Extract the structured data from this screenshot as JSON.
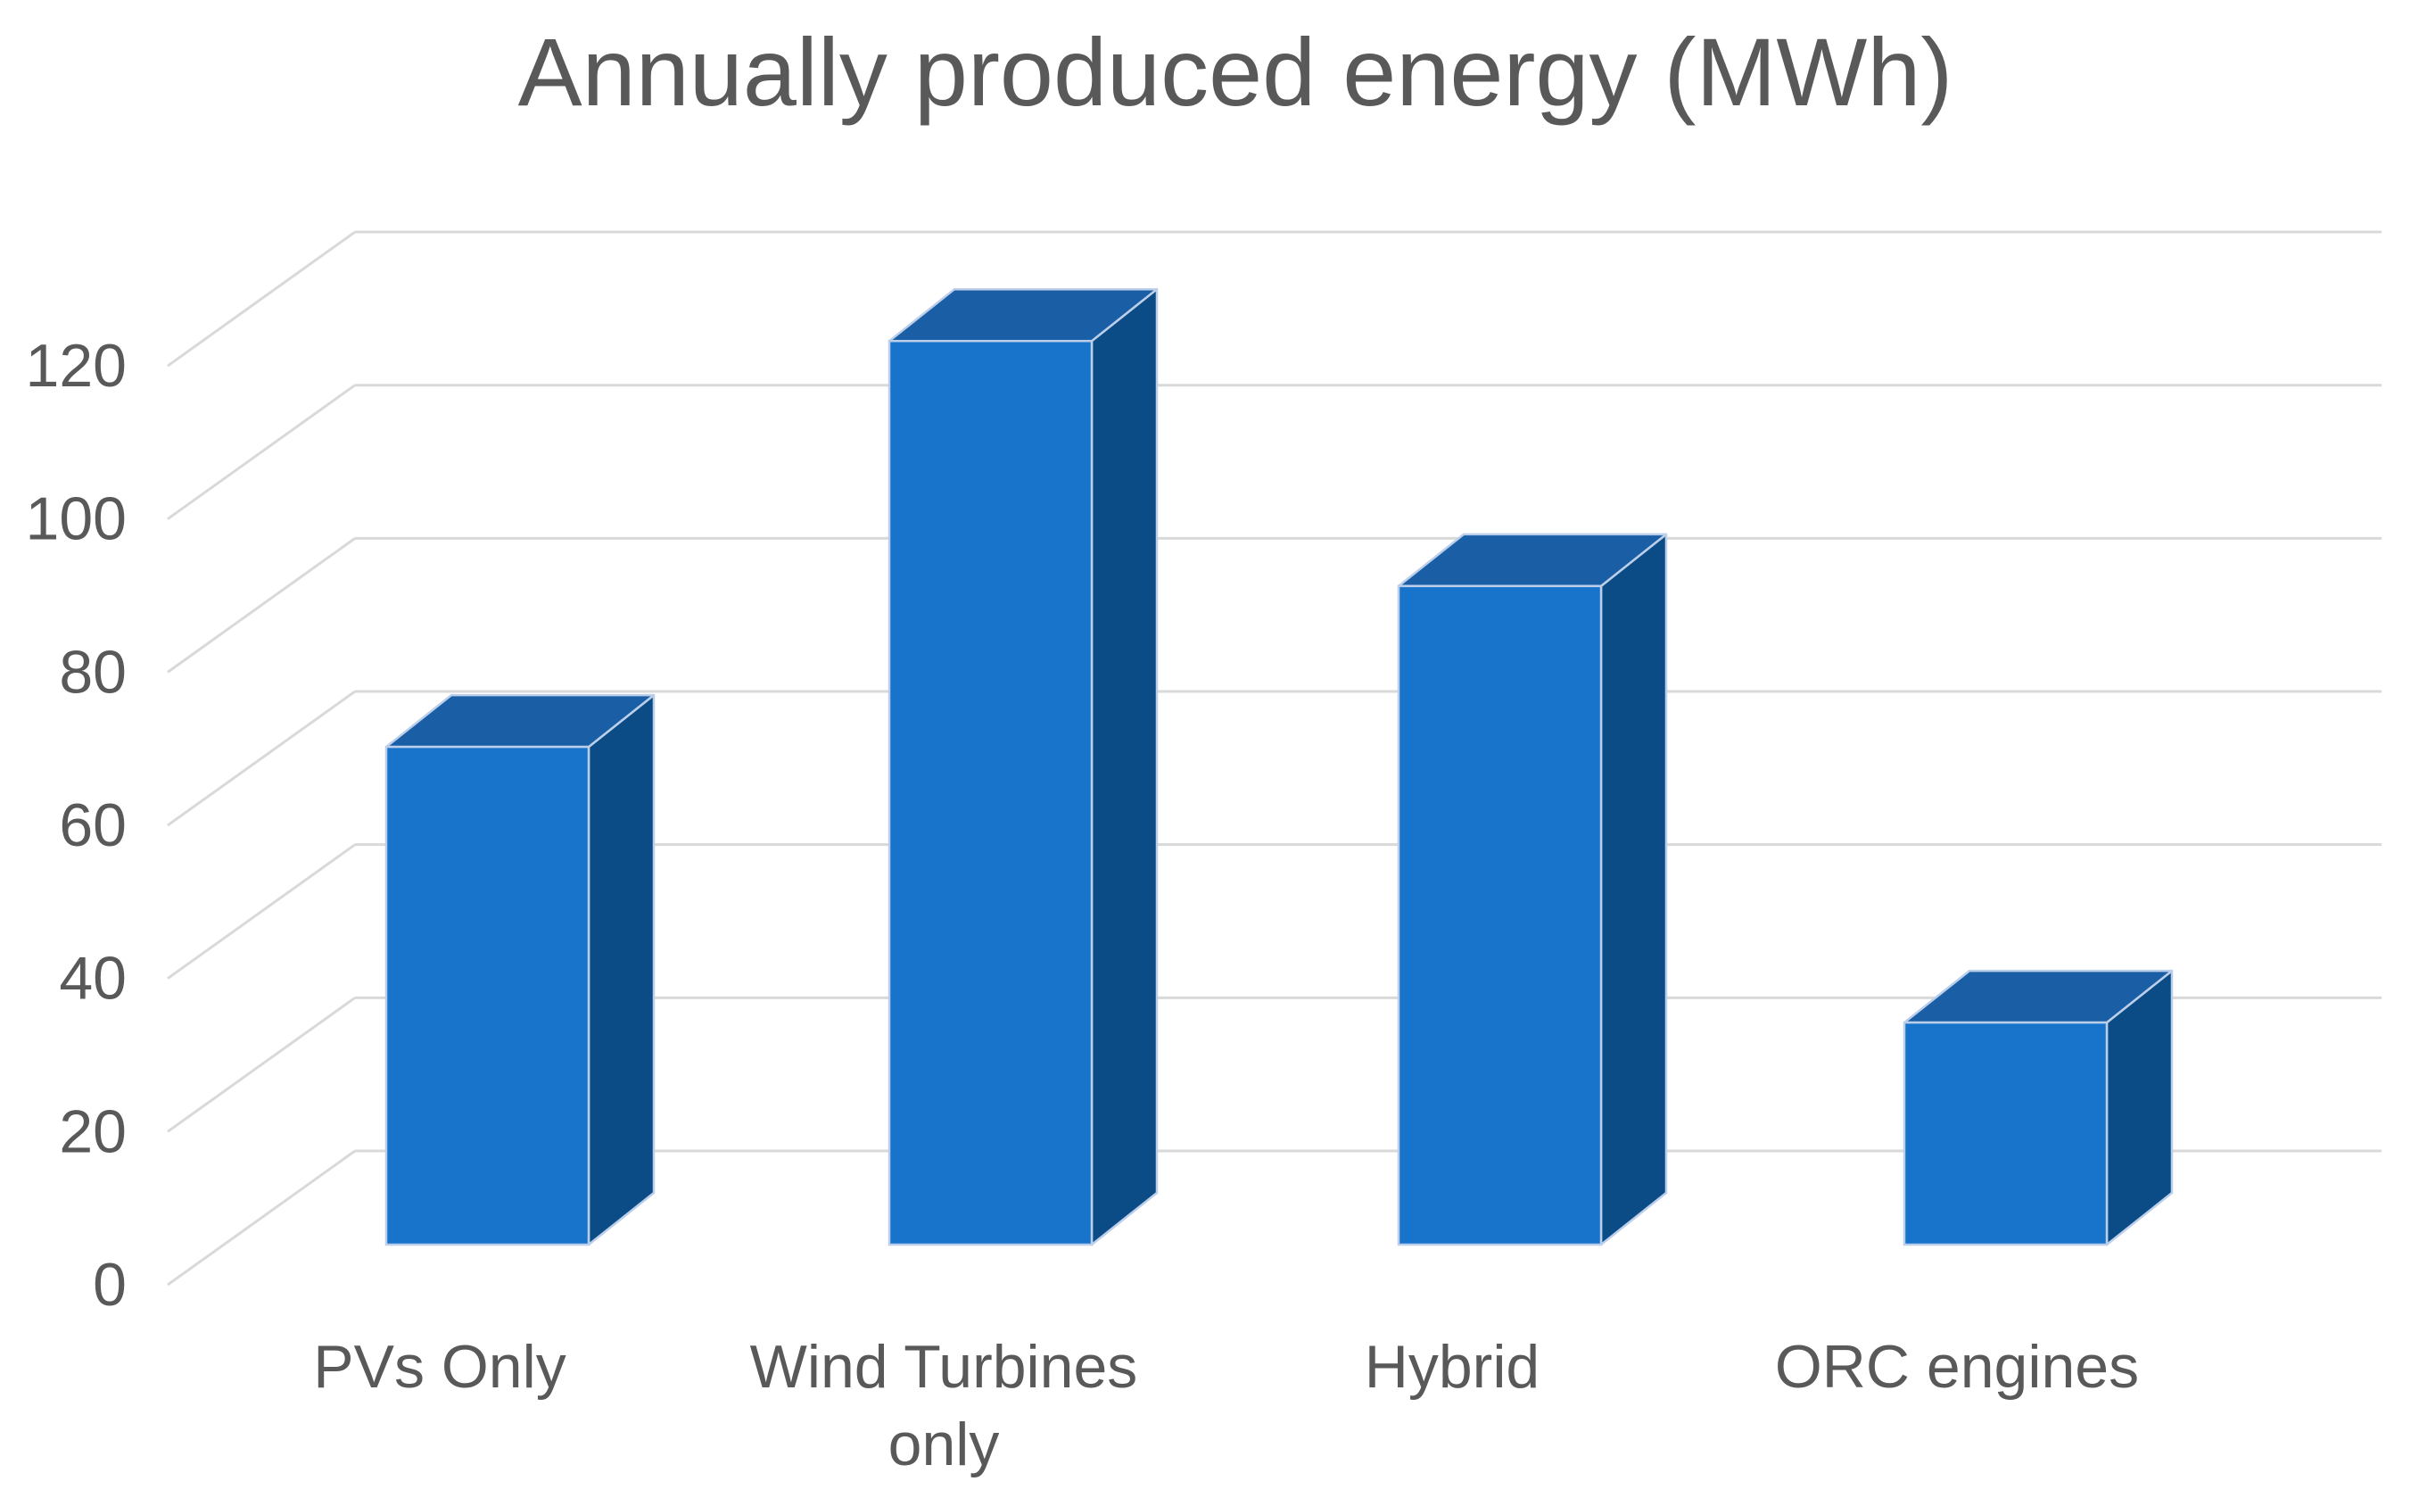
{
  "figure": {
    "title": "Annually produced energy (MWh)"
  },
  "colors": {
    "bar_front": "#1873CB",
    "bar_top": "#1A5FA6",
    "bar_side": "#0B4C86",
    "bar_outline": "#BCCFEA",
    "gridline": "#D9D9D9",
    "text": "#595959",
    "background": "#FFFFFF"
  },
  "chart_data": {
    "type": "bar",
    "style": "3d-column",
    "title": "Annually produced energy (MWh)",
    "categories": [
      "PVs Only",
      "Wind Turbines only",
      "Hybrid",
      "ORC engines"
    ],
    "category_lines": [
      [
        "PVs Only"
      ],
      [
        "Wind Turbines",
        "only"
      ],
      [
        "Hybrid"
      ],
      [
        "ORC engines"
      ]
    ],
    "values": [
      65,
      118,
      86,
      29
    ],
    "series_name": "Annually produced energy",
    "unit": "MWh",
    "xlabel": "",
    "ylabel": "",
    "ylim": [
      0,
      120
    ],
    "ytick_step": 20,
    "yticks": [
      0,
      20,
      40,
      60,
      80,
      100,
      120
    ],
    "grid": true,
    "legend": false
  }
}
